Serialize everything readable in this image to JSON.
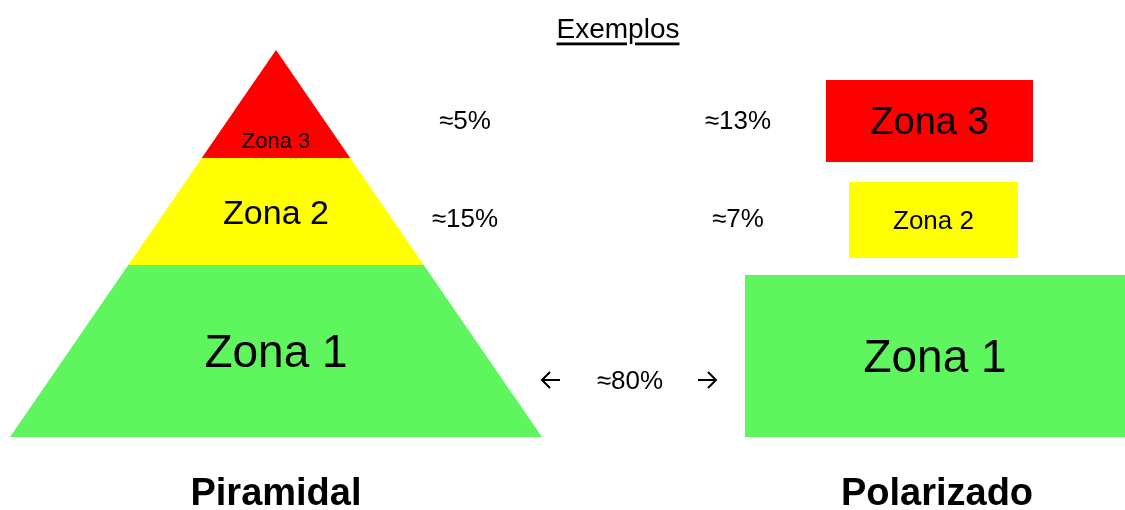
{
  "chart_data": {
    "type": "other",
    "title": "Exemplos",
    "categories": [
      "Zona 1",
      "Zona 2",
      "Zona 3"
    ],
    "colors": [
      "#5ff55f",
      "#ffff00",
      "#ff0000"
    ],
    "series": [
      {
        "name": "Piramidal",
        "values": [
          80,
          15,
          5
        ],
        "value_labels": [
          "≈80%",
          "≈15%",
          "≈5%"
        ]
      },
      {
        "name": "Polarizado",
        "values": [
          null,
          7,
          13
        ],
        "value_labels": [
          null,
          "≈7%",
          "≈13%"
        ]
      }
    ]
  }
}
